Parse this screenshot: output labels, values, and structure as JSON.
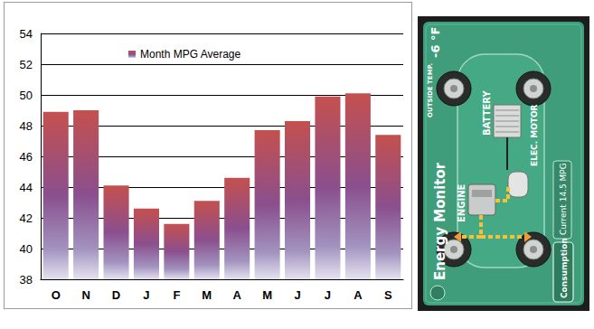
{
  "chart_data": {
    "type": "bar",
    "categories": [
      "O",
      "N",
      "D",
      "J",
      "F",
      "M",
      "A",
      "M",
      "J",
      "J",
      "A",
      "S"
    ],
    "series": [
      {
        "name": "Month MPG Average",
        "color": "#c4504e",
        "values": [
          48.9,
          49.0,
          44.1,
          42.6,
          41.6,
          43.1,
          44.6,
          47.7,
          48.3,
          49.9,
          50.1,
          47.4
        ]
      }
    ],
    "ylim": [
      38,
      54
    ],
    "yticks": [
      38,
      40,
      42,
      44,
      46,
      48,
      50,
      52,
      54
    ],
    "grid": true,
    "legend": "upper left"
  },
  "energy_monitor": {
    "title": "Energy Monitor",
    "outside_temp_label": "OUTSIDE TEMP.",
    "outside_temp": "-6 °F",
    "battery": "BATTERY",
    "engine": "ENGINE",
    "motor": "ELEC. MOTOR",
    "current": "Current  14.5 MPG",
    "button": "Consumption"
  }
}
